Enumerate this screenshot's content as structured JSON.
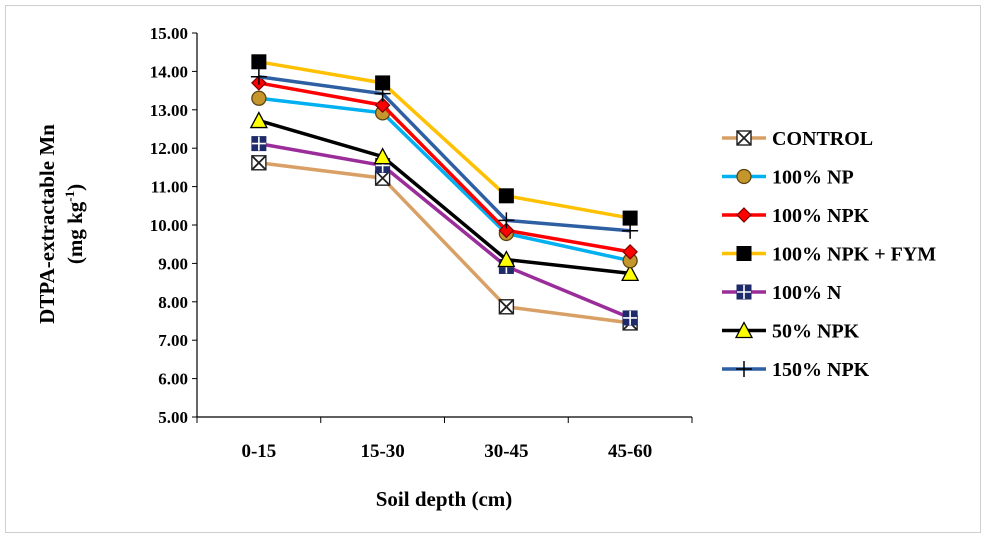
{
  "chart_data": {
    "type": "line",
    "categories": [
      "0-15",
      "15-30",
      "30-45",
      "45-60"
    ],
    "xlabel": "Soil depth (cm)",
    "ylabel_line1": "DTPA-extractable Mn",
    "ylabel_line2_prefix": "(mg kg",
    "ylabel_line2_sup": "-1",
    "ylabel_line2_suffix": ")",
    "ylim": [
      5,
      15
    ],
    "y_ticks": [
      "5.00",
      "6.00",
      "7.00",
      "8.00",
      "9.00",
      "10.00",
      "11.00",
      "12.00",
      "13.00",
      "14.00",
      "15.00"
    ],
    "grid": false,
    "legend_position": "right",
    "series": [
      {
        "name": "CONTROL",
        "values": [
          11.62,
          11.22,
          7.87,
          7.45
        ],
        "color": "#d9a066",
        "marker": "xsquare"
      },
      {
        "name": "100% NP",
        "values": [
          13.3,
          12.92,
          9.78,
          9.07
        ],
        "color": "#00b0f0",
        "marker": "circle"
      },
      {
        "name": "100% NPK",
        "values": [
          13.7,
          13.12,
          9.86,
          9.3
        ],
        "color": "#ff0000",
        "marker": "diamond"
      },
      {
        "name": "100% NPK + FYM",
        "values": [
          14.25,
          13.7,
          10.76,
          10.18
        ],
        "color": "#ffc000",
        "marker": "square"
      },
      {
        "name": "100% N",
        "values": [
          12.12,
          11.55,
          8.92,
          7.58
        ],
        "color": "#9b2d9b",
        "marker": "plussquare"
      },
      {
        "name": "50% NPK",
        "values": [
          12.72,
          11.78,
          9.1,
          8.74
        ],
        "color": "#000000",
        "marker": "triangle"
      },
      {
        "name": "150% NPK",
        "values": [
          13.86,
          13.42,
          10.12,
          9.85
        ],
        "color": "#2e5fa3",
        "marker": "plus"
      }
    ]
  }
}
